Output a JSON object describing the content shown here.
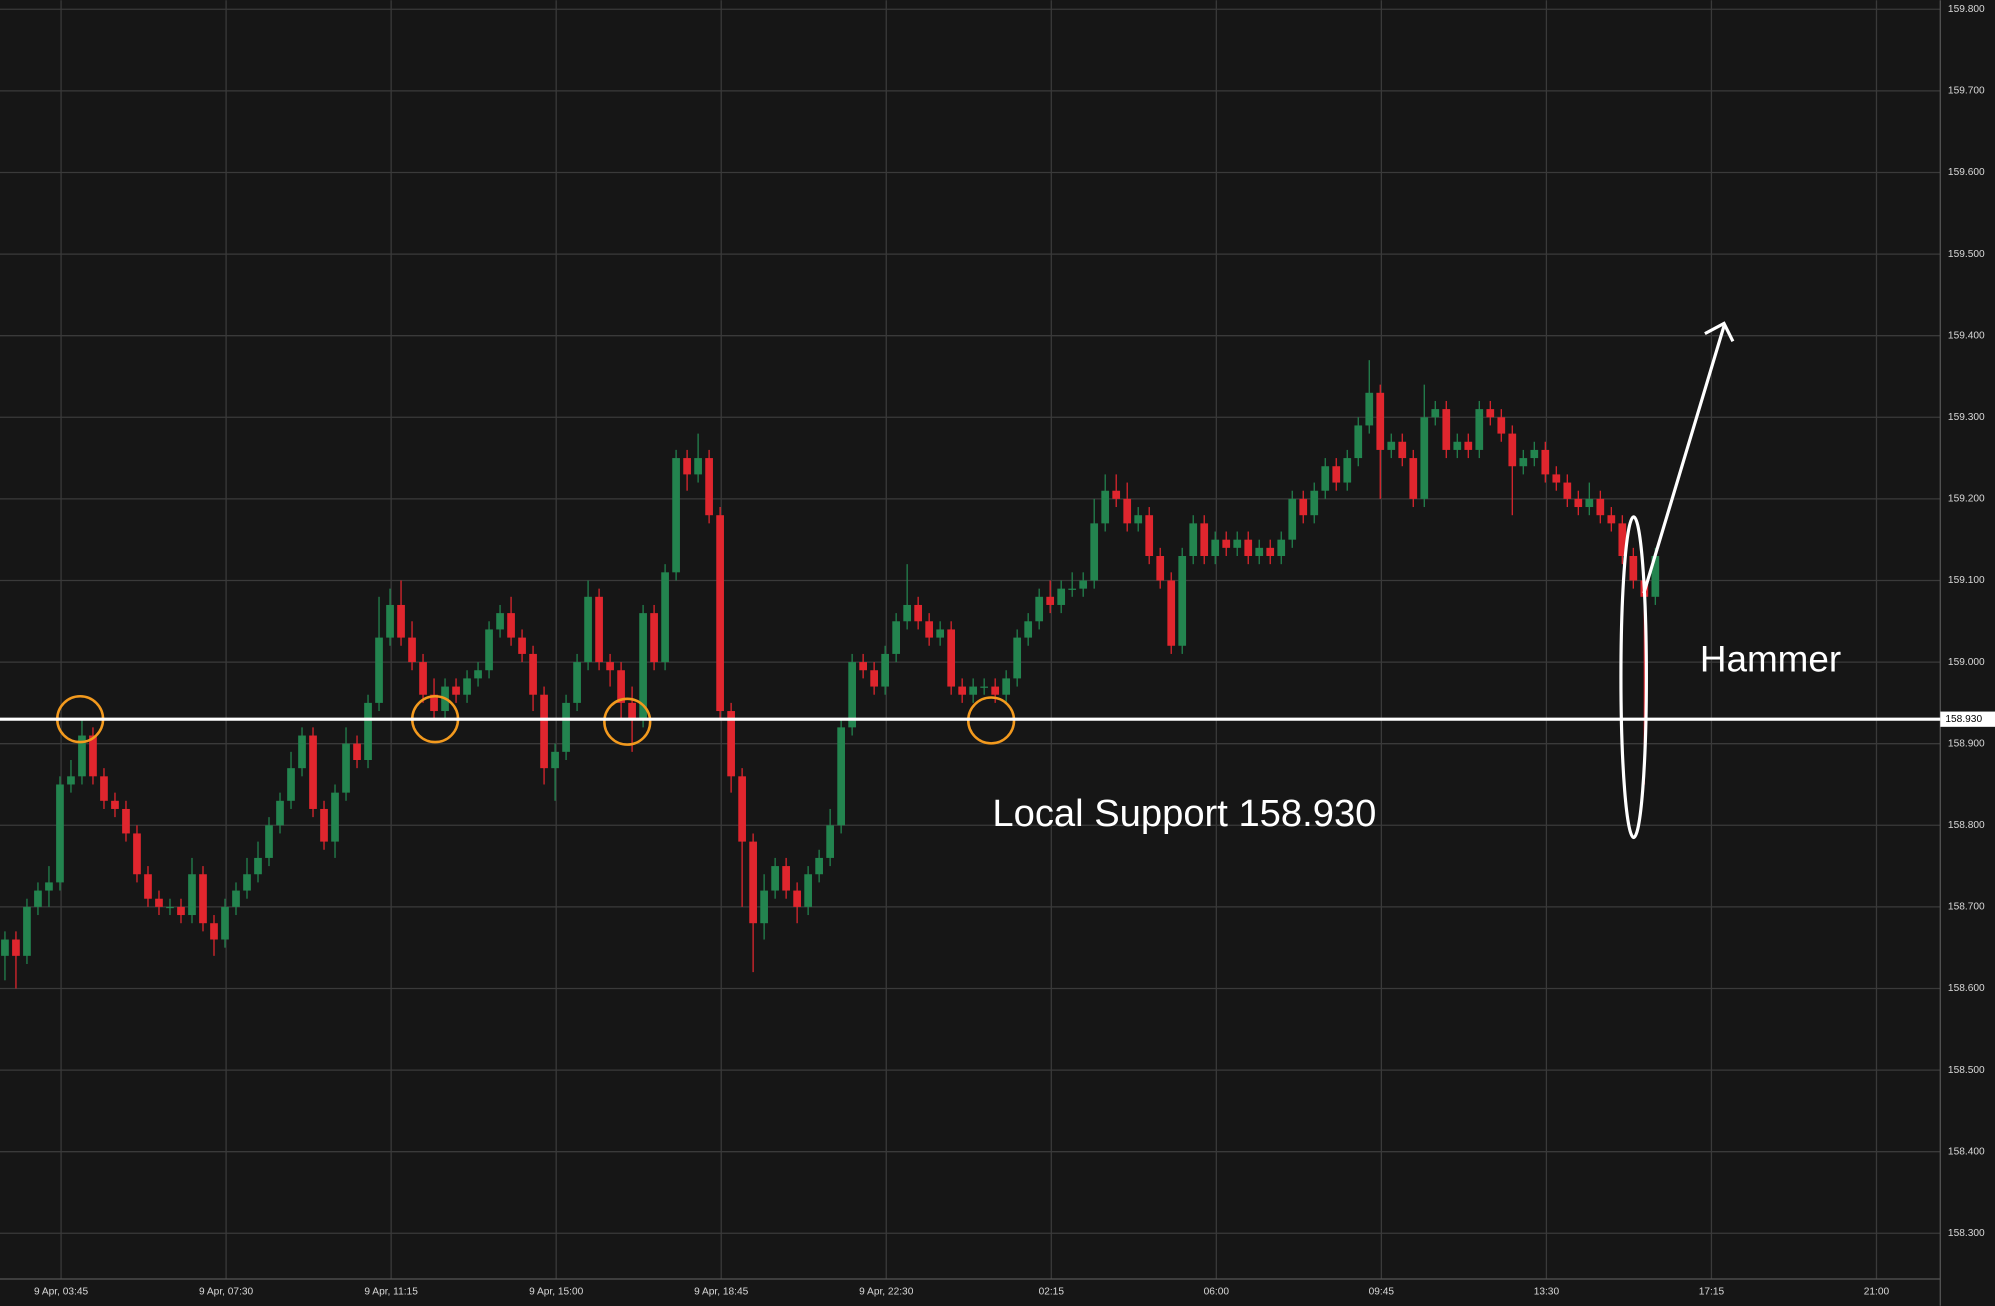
{
  "chart_data": {
    "type": "candlestick",
    "open": [
      158.64,
      158.66,
      158.64,
      158.7,
      158.72,
      158.73,
      158.85,
      158.86,
      158.91,
      158.86,
      158.83,
      158.82,
      158.79,
      158.74,
      158.71,
      158.7,
      158.7,
      158.69,
      158.74,
      158.68,
      158.66,
      158.7,
      158.72,
      158.74,
      158.76,
      158.8,
      158.83,
      158.87,
      158.91,
      158.82,
      158.78,
      158.84,
      158.9,
      158.88,
      158.95,
      159.03,
      159.07,
      159.03,
      159.0,
      158.96,
      158.94,
      158.97,
      158.96,
      158.98,
      158.99,
      159.04,
      159.06,
      159.03,
      159.01,
      158.96,
      158.87,
      158.89,
      158.95,
      159.0,
      159.08,
      159.0,
      158.99,
      158.95,
      158.93,
      159.06,
      159.0,
      159.11,
      159.25,
      159.23,
      159.25,
      159.18,
      158.94,
      158.86,
      158.78,
      158.68,
      158.72,
      158.75,
      158.72,
      158.7,
      158.74,
      158.76,
      158.8,
      158.92,
      159.0,
      158.99,
      158.97,
      159.01,
      159.05,
      159.07,
      159.05,
      159.03,
      159.04,
      158.97,
      158.96,
      158.97,
      158.97,
      158.96,
      158.98,
      159.03,
      159.05,
      159.08,
      159.07,
      159.09,
      159.09,
      159.1,
      159.17,
      159.21,
      159.2,
      159.17,
      159.18,
      159.13,
      159.1,
      159.02,
      159.13,
      159.17,
      159.13,
      159.15,
      159.14,
      159.15,
      159.13,
      159.14,
      159.13,
      159.15,
      159.2,
      159.18,
      159.21,
      159.24,
      159.22,
      159.25,
      159.29,
      159.33,
      159.26,
      159.27,
      159.25,
      159.2,
      159.3,
      159.31,
      159.26,
      159.27,
      159.26,
      159.31,
      159.3,
      159.28,
      159.24,
      159.25,
      159.26,
      159.23,
      159.22,
      159.2,
      159.19,
      159.2,
      159.18,
      159.17,
      159.13,
      159.1,
      159.08
    ],
    "high": [
      158.67,
      158.67,
      158.71,
      158.73,
      158.75,
      158.86,
      158.88,
      158.93,
      158.92,
      158.87,
      158.84,
      158.83,
      158.8,
      158.75,
      158.72,
      158.71,
      158.71,
      158.76,
      158.75,
      158.69,
      158.71,
      158.73,
      158.76,
      158.78,
      158.81,
      158.84,
      158.89,
      158.92,
      158.92,
      158.83,
      158.85,
      158.92,
      158.91,
      158.96,
      159.08,
      159.09,
      159.1,
      159.05,
      159.01,
      158.98,
      158.98,
      158.98,
      158.99,
      159.0,
      159.05,
      159.07,
      159.08,
      159.04,
      159.02,
      158.97,
      158.9,
      158.96,
      159.01,
      159.1,
      159.09,
      159.01,
      159.0,
      158.97,
      159.07,
      159.07,
      159.12,
      159.26,
      159.26,
      159.28,
      159.26,
      159.19,
      158.95,
      158.87,
      158.79,
      158.74,
      158.76,
      158.76,
      158.73,
      158.75,
      158.77,
      158.82,
      158.93,
      159.01,
      159.01,
      159.0,
      159.02,
      159.06,
      159.12,
      159.08,
      159.06,
      159.05,
      159.05,
      158.98,
      158.98,
      158.98,
      158.98,
      158.99,
      159.04,
      159.06,
      159.09,
      159.1,
      159.1,
      159.11,
      159.11,
      159.2,
      159.23,
      159.23,
      159.22,
      159.19,
      159.19,
      159.14,
      159.11,
      159.14,
      159.18,
      159.18,
      159.16,
      159.16,
      159.16,
      159.16,
      159.15,
      159.15,
      159.16,
      159.21,
      159.21,
      159.22,
      159.25,
      159.25,
      159.26,
      159.3,
      159.37,
      159.34,
      159.28,
      159.28,
      159.26,
      159.34,
      159.32,
      159.32,
      159.28,
      159.28,
      159.32,
      159.32,
      159.31,
      159.29,
      159.26,
      159.27,
      159.27,
      159.24,
      159.23,
      159.21,
      159.22,
      159.21,
      159.19,
      159.18,
      159.14,
      159.11,
      159.14
    ],
    "low": [
      158.61,
      158.6,
      158.63,
      158.69,
      158.7,
      158.72,
      158.84,
      158.85,
      158.85,
      158.82,
      158.81,
      158.78,
      158.73,
      158.7,
      158.69,
      158.69,
      158.68,
      158.68,
      158.67,
      158.64,
      158.65,
      158.69,
      158.71,
      158.73,
      158.75,
      158.79,
      158.82,
      158.86,
      158.81,
      158.77,
      158.76,
      158.83,
      158.87,
      158.87,
      158.94,
      159.02,
      159.02,
      158.99,
      158.95,
      158.93,
      158.93,
      158.95,
      158.95,
      158.97,
      158.98,
      159.03,
      159.02,
      159.0,
      158.94,
      158.85,
      158.83,
      158.88,
      158.94,
      158.99,
      158.99,
      158.97,
      158.93,
      158.89,
      158.92,
      158.99,
      158.99,
      159.1,
      159.21,
      159.22,
      159.17,
      158.93,
      158.84,
      158.7,
      158.62,
      158.66,
      158.71,
      158.71,
      158.68,
      158.69,
      158.73,
      158.75,
      158.79,
      158.91,
      158.98,
      158.96,
      158.96,
      159.0,
      159.04,
      159.04,
      159.02,
      159.02,
      158.96,
      158.95,
      158.95,
      158.96,
      158.95,
      158.95,
      158.97,
      159.02,
      159.04,
      159.06,
      159.06,
      159.08,
      159.08,
      159.09,
      159.16,
      159.19,
      159.16,
      159.16,
      159.12,
      159.09,
      159.01,
      159.01,
      159.12,
      159.12,
      159.12,
      159.13,
      159.13,
      159.12,
      159.12,
      159.12,
      159.12,
      159.14,
      159.17,
      159.17,
      159.2,
      159.21,
      159.21,
      159.24,
      159.28,
      159.2,
      159.25,
      159.24,
      159.19,
      159.19,
      159.29,
      159.25,
      159.25,
      159.25,
      159.25,
      159.29,
      159.27,
      159.18,
      159.23,
      159.24,
      159.22,
      159.21,
      159.19,
      159.18,
      159.18,
      159.17,
      159.16,
      159.12,
      159.09,
      158.85,
      159.07
    ],
    "close": [
      158.66,
      158.64,
      158.7,
      158.72,
      158.73,
      158.85,
      158.86,
      158.91,
      158.86,
      158.83,
      158.82,
      158.79,
      158.74,
      158.71,
      158.7,
      158.7,
      158.69,
      158.74,
      158.68,
      158.66,
      158.7,
      158.72,
      158.74,
      158.76,
      158.8,
      158.83,
      158.87,
      158.91,
      158.82,
      158.78,
      158.84,
      158.9,
      158.88,
      158.95,
      159.03,
      159.07,
      159.03,
      159.0,
      158.96,
      158.94,
      158.97,
      158.96,
      158.98,
      158.99,
      159.04,
      159.06,
      159.03,
      159.01,
      158.96,
      158.87,
      158.89,
      158.95,
      159.0,
      159.08,
      159.0,
      158.99,
      158.95,
      158.93,
      159.06,
      159.0,
      159.11,
      159.25,
      159.23,
      159.25,
      159.18,
      158.94,
      158.86,
      158.78,
      158.68,
      158.72,
      158.75,
      158.72,
      158.7,
      158.74,
      158.76,
      158.8,
      158.92,
      159.0,
      158.99,
      158.97,
      159.01,
      159.05,
      159.07,
      159.05,
      159.03,
      159.04,
      158.97,
      158.96,
      158.97,
      158.97,
      158.96,
      158.98,
      159.03,
      159.05,
      159.08,
      159.07,
      159.09,
      159.09,
      159.1,
      159.17,
      159.21,
      159.2,
      159.17,
      159.18,
      159.13,
      159.1,
      159.02,
      159.13,
      159.17,
      159.13,
      159.15,
      159.14,
      159.15,
      159.13,
      159.14,
      159.13,
      159.15,
      159.2,
      159.18,
      159.21,
      159.24,
      159.22,
      159.25,
      159.29,
      159.33,
      159.26,
      159.27,
      159.25,
      159.2,
      159.3,
      159.31,
      159.26,
      159.27,
      159.26,
      159.31,
      159.3,
      159.28,
      159.24,
      159.25,
      159.26,
      159.23,
      159.22,
      159.2,
      159.19,
      159.2,
      159.18,
      159.17,
      159.13,
      159.1,
      159.08,
      159.13
    ],
    "up_color": "#23844f",
    "down_color": "#e0262e",
    "ylim": [
      158.244,
      159.811
    ],
    "yticks": [
      {
        "value": 158.3,
        "label": "158.300"
      },
      {
        "value": 158.4,
        "label": "158.400"
      },
      {
        "value": 158.5,
        "label": "158.500"
      },
      {
        "value": 158.6,
        "label": "158.600"
      },
      {
        "value": 158.7,
        "label": "158.700"
      },
      {
        "value": 158.8,
        "label": "158.800"
      },
      {
        "value": 158.9,
        "label": "158.900"
      },
      {
        "value": 159.0,
        "label": "159.000"
      },
      {
        "value": 159.1,
        "label": "159.100"
      },
      {
        "value": 159.2,
        "label": "159.200"
      },
      {
        "value": 159.3,
        "label": "159.300"
      },
      {
        "value": 159.4,
        "label": "159.400"
      },
      {
        "value": 159.5,
        "label": "159.500"
      },
      {
        "value": 159.6,
        "label": "159.600"
      },
      {
        "value": 159.7,
        "label": "159.700"
      },
      {
        "value": 159.8,
        "label": "159.800"
      }
    ],
    "xlim": [
      -0.45,
      175.9
    ],
    "xticks": [
      {
        "value": 5.1,
        "label": "9 Apr, 03:45"
      },
      {
        "value": 20.1,
        "label": "9 Apr, 07:30"
      },
      {
        "value": 35.1,
        "label": "9 Apr, 11:15"
      },
      {
        "value": 50.1,
        "label": "9 Apr, 15:00"
      },
      {
        "value": 65.1,
        "label": "9 Apr, 18:45"
      },
      {
        "value": 80.1,
        "label": "9 Apr, 22:30"
      },
      {
        "value": 95.1,
        "label": "02:15"
      },
      {
        "value": 110.1,
        "label": "06:00"
      },
      {
        "value": 125.1,
        "label": "09:45"
      },
      {
        "value": 140.1,
        "label": "13:30"
      },
      {
        "value": 155.1,
        "label": "17:15"
      },
      {
        "value": 170.1,
        "label": "21:00"
      }
    ],
    "grid": true,
    "support": {
      "value": 158.93,
      "label": "158.930",
      "color": "#ffffff"
    },
    "annotations": [
      "Local Support 158.930",
      "Hammer"
    ]
  }
}
